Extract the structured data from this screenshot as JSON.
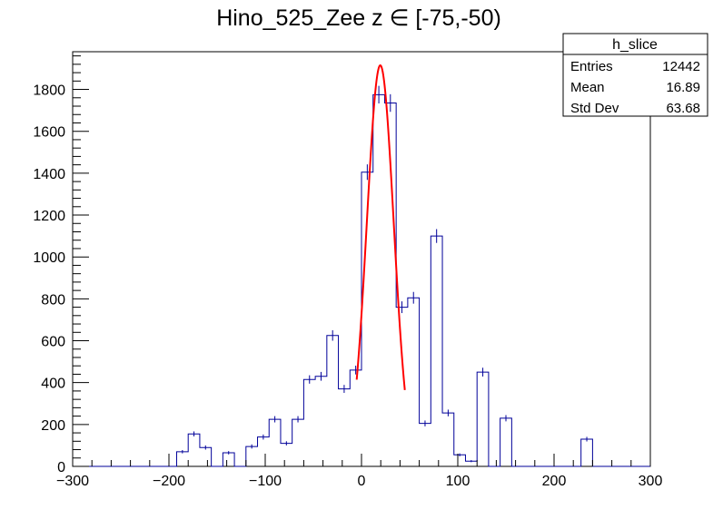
{
  "chart_data": {
    "type": "bar",
    "title": "Hino_525_Zee z  ∈ [-75,-50)",
    "xlabel": "",
    "ylabel": "",
    "xlim": [
      -300,
      300
    ],
    "ylim": [
      0,
      1980
    ],
    "x_ticks": [
      -300,
      -200,
      -100,
      0,
      100,
      200,
      300
    ],
    "y_ticks": [
      0,
      200,
      400,
      600,
      800,
      1000,
      1200,
      1400,
      1600,
      1800
    ],
    "bin_width": 12,
    "bin_edges_start": -300,
    "values": [
      0,
      0,
      0,
      0,
      0,
      0,
      0,
      0,
      0,
      70,
      155,
      90,
      0,
      65,
      0,
      95,
      140,
      225,
      110,
      225,
      415,
      430,
      625,
      370,
      460,
      1405,
      1775,
      1735,
      760,
      805,
      205,
      1100,
      255,
      55,
      25,
      450,
      0,
      230,
      0,
      0,
      0,
      0,
      0,
      0,
      130,
      0,
      0,
      0,
      0,
      0
    ],
    "errors": [
      0,
      0,
      0,
      0,
      0,
      0,
      0,
      0,
      0,
      8,
      12,
      10,
      0,
      8,
      0,
      10,
      12,
      15,
      10,
      15,
      20,
      21,
      25,
      19,
      21,
      37,
      42,
      42,
      28,
      28,
      14,
      33,
      16,
      7,
      5,
      21,
      0,
      15,
      0,
      0,
      0,
      0,
      0,
      0,
      11,
      0,
      0,
      0,
      0,
      0
    ],
    "fit": {
      "type": "gaussian",
      "amplitude": 1915,
      "mean": 19.5,
      "sigma": 14,
      "x_range": [
        -5,
        45
      ],
      "color": "#ff0000"
    },
    "hist_color": "#000099",
    "grid": false,
    "legend": "top-right"
  },
  "stats_box": {
    "title": "h_slice",
    "rows": [
      {
        "label": "Entries",
        "value": "12442"
      },
      {
        "label": "Mean",
        "value": "16.89"
      },
      {
        "label": "Std Dev",
        "value": "63.68"
      }
    ]
  }
}
